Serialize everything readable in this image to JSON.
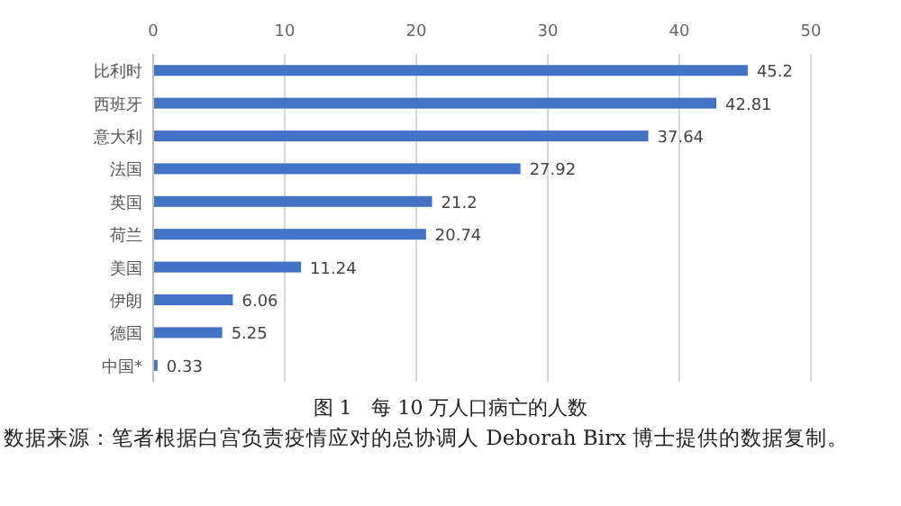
{
  "chart_data": {
    "type": "bar",
    "orientation": "horizontal",
    "title": "图 1　每 10 万人口病亡的人数",
    "categories": [
      "比利时",
      "西班牙",
      "意大利",
      "法国",
      "英国",
      "荷兰",
      "美国",
      "伊朗",
      "德国",
      "中国*"
    ],
    "values": [
      45.2,
      42.81,
      37.64,
      27.92,
      21.2,
      20.74,
      11.24,
      6.06,
      5.25,
      0.33
    ],
    "data_labels": true,
    "color": "#4472c4",
    "xlim": [
      0,
      50
    ],
    "xticks": [
      0,
      10,
      20,
      30,
      40,
      50
    ],
    "grid": "x",
    "annotations": [
      "数据来源：笔者根据白宫负责疫情应对的总协调人 Deborah Birx 博士提供的数据复制。"
    ]
  }
}
